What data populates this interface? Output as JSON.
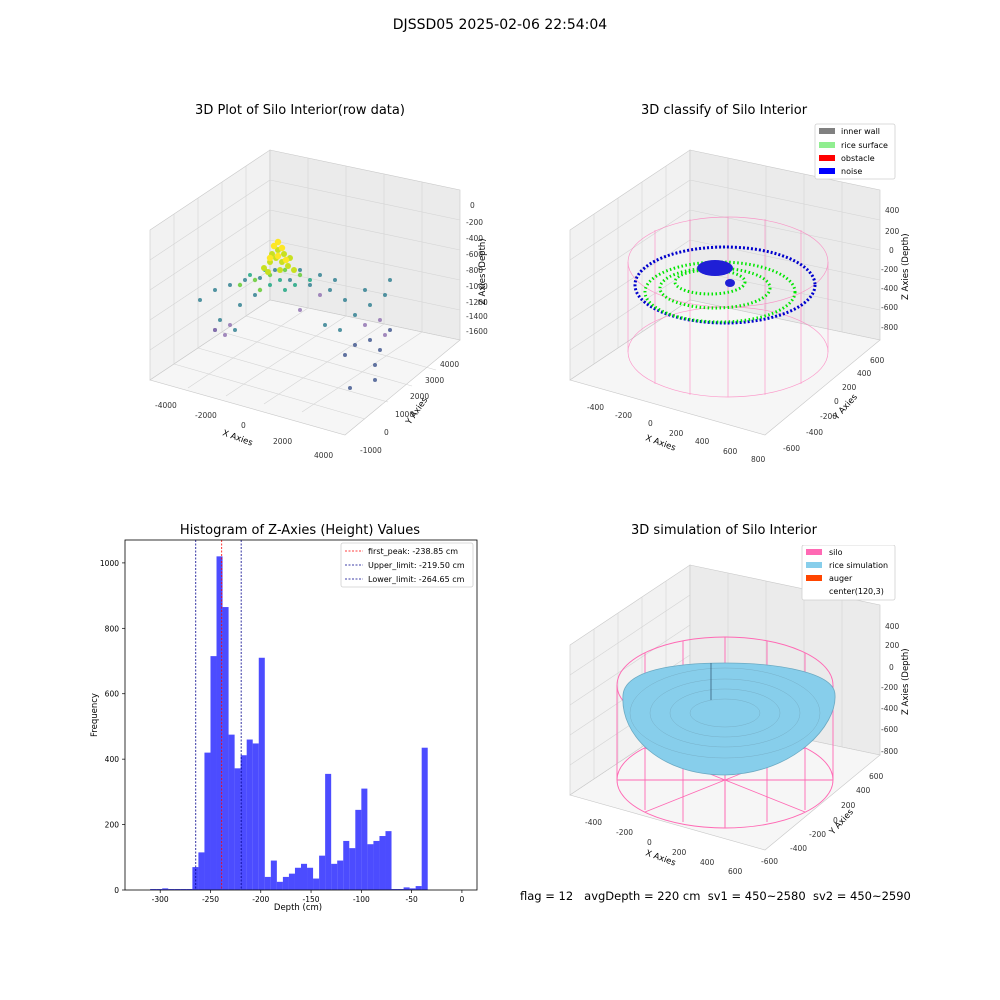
{
  "figure": {
    "suptitle": "DJSSD05 2025-02-06 22:54:04",
    "footer": {
      "flag": "flag = 12",
      "avg_depth": "avgDepth = 220 cm",
      "sv1": "sv1 = 450~2580",
      "sv2": "sv2 = 450~2590"
    }
  },
  "chart_data": [
    {
      "type": "scatter",
      "title": "3D Plot of Silo Interior(row data)",
      "xlabel": "X Axies",
      "ylabel": "Y Axies",
      "zlabel": "Z Axies (Depth)",
      "x_ticks": [
        "-4000",
        "-2000",
        "0",
        "2000",
        "4000"
      ],
      "y_ticks": [
        "-1000",
        "0",
        "1000",
        "2000",
        "3000",
        "4000"
      ],
      "z_ticks": [
        "0",
        "-200",
        "-400",
        "-600",
        "-800",
        "-1000",
        "-1200",
        "-1400",
        "-1600"
      ],
      "xlim": [
        -4500,
        4500
      ],
      "ylim": [
        -1200,
        4500
      ],
      "zlim": [
        -1700,
        50
      ],
      "colormap": "viridis",
      "grid": true
    },
    {
      "type": "scatter",
      "title": "3D classify of Silo Interior",
      "xlabel": "X Axies",
      "ylabel": "Y Axies",
      "zlabel": "Z Axies (Depth)",
      "x_ticks": [
        "-400",
        "-200",
        "0",
        "200",
        "400",
        "600",
        "800"
      ],
      "y_ticks": [
        "-600",
        "-400",
        "-200",
        "0",
        "200",
        "400",
        "600"
      ],
      "z_ticks": [
        "400",
        "200",
        "0",
        "-200",
        "-400",
        "-600",
        "-800"
      ],
      "legend": [
        {
          "label": "inner wall",
          "color": "#808080"
        },
        {
          "label": "rice surface",
          "color": "#90ee90"
        },
        {
          "label": "obstacle",
          "color": "#ff0000"
        },
        {
          "label": "noise",
          "color": "#0000ff"
        }
      ],
      "legend_position": "top-right",
      "grid": true
    },
    {
      "type": "bar",
      "title": "Histogram of Z-Axies (Height) Values",
      "xlabel": "Depth (cm)",
      "ylabel": "Frequency",
      "xlim": [
        -335,
        15
      ],
      "ylim": [
        0,
        1070
      ],
      "x_ticks": [
        -300,
        -250,
        -200,
        -150,
        -100,
        -50,
        0
      ],
      "y_ticks": [
        0,
        200,
        400,
        600,
        800,
        1000
      ],
      "bar_color": "#0000ff",
      "bar_width": 6,
      "bins": [
        {
          "x": -310,
          "y": 3
        },
        {
          "x": -304,
          "y": 3
        },
        {
          "x": -298,
          "y": 5
        },
        {
          "x": -292,
          "y": 3
        },
        {
          "x": -286,
          "y": 3
        },
        {
          "x": -280,
          "y": 3
        },
        {
          "x": -274,
          "y": 3
        },
        {
          "x": -268,
          "y": 70
        },
        {
          "x": -262,
          "y": 115
        },
        {
          "x": -256,
          "y": 420
        },
        {
          "x": -250,
          "y": 715
        },
        {
          "x": -244,
          "y": 1020
        },
        {
          "x": -238,
          "y": 865
        },
        {
          "x": -232,
          "y": 475
        },
        {
          "x": -226,
          "y": 372
        },
        {
          "x": -220,
          "y": 412
        },
        {
          "x": -214,
          "y": 460
        },
        {
          "x": -208,
          "y": 448
        },
        {
          "x": -202,
          "y": 710
        },
        {
          "x": -196,
          "y": 40
        },
        {
          "x": -190,
          "y": 90
        },
        {
          "x": -184,
          "y": 25
        },
        {
          "x": -178,
          "y": 40
        },
        {
          "x": -172,
          "y": 50
        },
        {
          "x": -166,
          "y": 68
        },
        {
          "x": -160,
          "y": 80
        },
        {
          "x": -154,
          "y": 68
        },
        {
          "x": -148,
          "y": 35
        },
        {
          "x": -142,
          "y": 105
        },
        {
          "x": -136,
          "y": 355
        },
        {
          "x": -130,
          "y": 80
        },
        {
          "x": -124,
          "y": 90
        },
        {
          "x": -118,
          "y": 150
        },
        {
          "x": -112,
          "y": 128
        },
        {
          "x": -106,
          "y": 245
        },
        {
          "x": -100,
          "y": 310
        },
        {
          "x": -94,
          "y": 140
        },
        {
          "x": -88,
          "y": 150
        },
        {
          "x": -82,
          "y": 165
        },
        {
          "x": -76,
          "y": 180
        },
        {
          "x": -70,
          "y": 3
        },
        {
          "x": -64,
          "y": 3
        },
        {
          "x": -58,
          "y": 8
        },
        {
          "x": -52,
          "y": 5
        },
        {
          "x": -46,
          "y": 12
        },
        {
          "x": -40,
          "y": 435
        }
      ],
      "lines": [
        {
          "label": "first_peak: -238.85 cm",
          "x": -238.85,
          "color": "#ff0000"
        },
        {
          "label": "Upper_limit: -219.50 cm",
          "x": -219.5,
          "color": "#00008b"
        },
        {
          "label": "Lower_limit: -264.65 cm",
          "x": -264.65,
          "color": "#00008b"
        }
      ],
      "legend_position": "top-right",
      "grid": false
    },
    {
      "type": "area",
      "title": "3D simulation of Silo Interior",
      "xlabel": "X Axies",
      "ylabel": "Y Axies",
      "zlabel": "Z Axies (Depth)",
      "x_ticks": [
        "-400",
        "-200",
        "0",
        "200",
        "400",
        "600"
      ],
      "y_ticks": [
        "-600",
        "-400",
        "-200",
        "0",
        "200",
        "400",
        "600"
      ],
      "z_ticks": [
        "400",
        "200",
        "0",
        "-200",
        "-400",
        "-600",
        "-800"
      ],
      "legend": [
        {
          "label": "silo",
          "color": "#ff69b4"
        },
        {
          "label": "rice simulation",
          "color": "#87ceeb"
        },
        {
          "label": "auger",
          "color": "#ff4500"
        },
        {
          "label": "center(120,3)",
          "color": "#ffffff"
        }
      ],
      "legend_position": "top-right",
      "grid": true
    }
  ]
}
